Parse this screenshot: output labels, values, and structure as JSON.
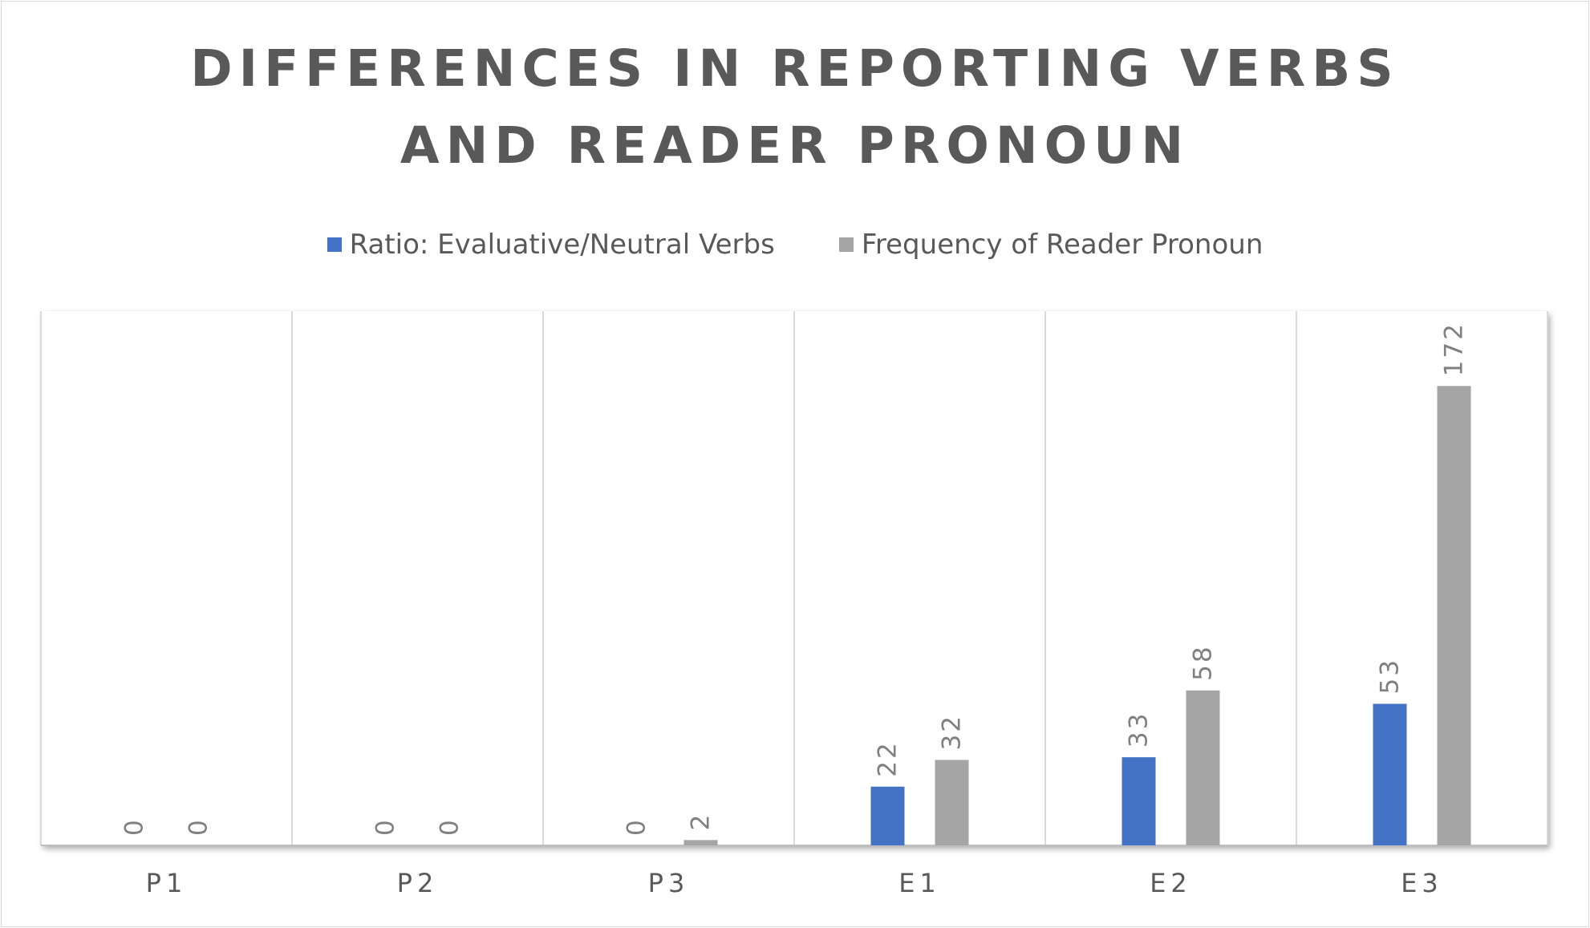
{
  "chart_data": {
    "type": "bar",
    "title_lines": [
      "DIFFERENCES IN REPORTING VERBS",
      "AND READER PRONOUN"
    ],
    "categories": [
      "P1",
      "P2",
      "P3",
      "E1",
      "E2",
      "E3"
    ],
    "series": [
      {
        "name": "Ratio: Evaluative/Neutral Verbs",
        "color": "#4472c4",
        "values": [
          0,
          0,
          0,
          22,
          33,
          53
        ]
      },
      {
        "name": "Frequency of Reader Pronoun",
        "color": "#a5a5a5",
        "values": [
          0,
          0,
          2,
          32,
          58,
          172
        ]
      }
    ],
    "ylim": [
      0,
      200
    ],
    "legend_position": "top",
    "grid": "vertical category separators",
    "data_labels": "rotated, above bars"
  }
}
